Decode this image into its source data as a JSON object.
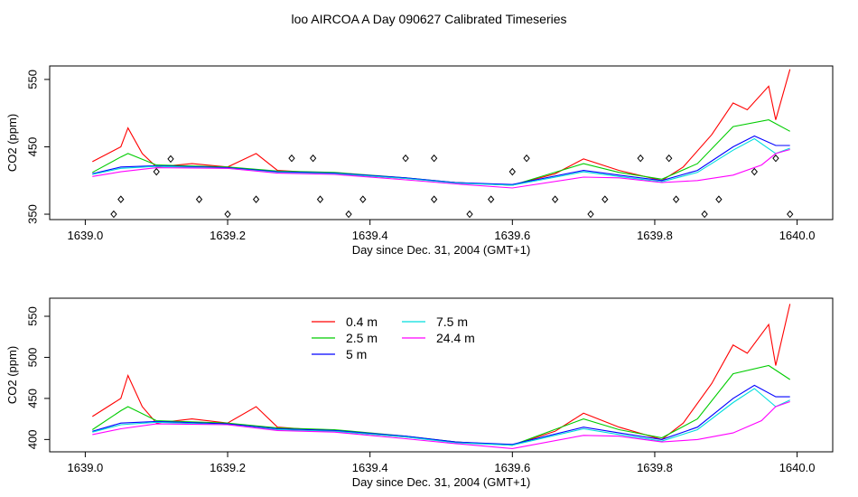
{
  "title": "loo AIRCOA A  Day 090627  Calibrated Timeseries",
  "chart_data": [
    {
      "type": "line",
      "xlabel": "Day since Dec. 31, 2004 (GMT+1)",
      "ylabel": "CO2 (ppm)",
      "xlim": [
        1638.95,
        1640.05
      ],
      "ylim": [
        342,
        570
      ],
      "xticks": [
        "1639.0",
        "1639.2",
        "1639.4",
        "1639.6",
        "1639.8",
        "1640.0"
      ],
      "yticks": [
        "350",
        "450",
        "550"
      ],
      "series": [
        {
          "name": "0.4 m",
          "color": "#ff0000",
          "x": [
            1639.01,
            1639.05,
            1639.06,
            1639.08,
            1639.1,
            1639.15,
            1639.2,
            1639.24,
            1639.27,
            1639.35,
            1639.45,
            1639.52,
            1639.6,
            1639.66,
            1639.7,
            1639.75,
            1639.81,
            1639.84,
            1639.88,
            1639.91,
            1639.93,
            1639.96,
            1639.97,
            1639.99
          ],
          "y": [
            428,
            450,
            478,
            440,
            420,
            425,
            420,
            440,
            415,
            410,
            403,
            397,
            393,
            410,
            432,
            415,
            400,
            420,
            468,
            515,
            505,
            540,
            490,
            565
          ]
        },
        {
          "name": "2.5 m",
          "color": "#00cc00",
          "x": [
            1639.01,
            1639.05,
            1639.06,
            1639.1,
            1639.2,
            1639.27,
            1639.35,
            1639.45,
            1639.52,
            1639.6,
            1639.7,
            1639.75,
            1639.81,
            1639.86,
            1639.91,
            1639.96,
            1639.99
          ],
          "y": [
            412,
            435,
            440,
            423,
            420,
            414,
            412,
            404,
            397,
            393,
            425,
            412,
            402,
            425,
            480,
            490,
            473
          ]
        },
        {
          "name": "5 m",
          "color": "#0000ff",
          "x": [
            1639.01,
            1639.05,
            1639.1,
            1639.2,
            1639.27,
            1639.35,
            1639.45,
            1639.52,
            1639.6,
            1639.7,
            1639.75,
            1639.81,
            1639.86,
            1639.91,
            1639.94,
            1639.97,
            1639.99
          ],
          "y": [
            410,
            420,
            422,
            419,
            413,
            411,
            404,
            397,
            394,
            415,
            408,
            400,
            415,
            450,
            466,
            452,
            452
          ]
        },
        {
          "name": "7.5 m",
          "color": "#00dddd",
          "x": [
            1639.01,
            1639.05,
            1639.1,
            1639.2,
            1639.27,
            1639.35,
            1639.45,
            1639.52,
            1639.6,
            1639.7,
            1639.75,
            1639.81,
            1639.86,
            1639.91,
            1639.94,
            1639.97,
            1639.99
          ],
          "y": [
            409,
            418,
            421,
            418,
            412,
            410,
            403,
            396,
            393,
            413,
            406,
            398,
            412,
            445,
            462,
            440,
            448
          ]
        },
        {
          "name": "24.4 m",
          "color": "#ff00ff",
          "x": [
            1639.01,
            1639.05,
            1639.1,
            1639.2,
            1639.27,
            1639.35,
            1639.45,
            1639.52,
            1639.6,
            1639.7,
            1639.75,
            1639.81,
            1639.86,
            1639.91,
            1639.95,
            1639.97,
            1639.99
          ],
          "y": [
            406,
            413,
            419,
            418,
            411,
            409,
            401,
            395,
            389,
            405,
            404,
            397,
            400,
            408,
            423,
            440,
            446
          ]
        }
      ],
      "markers": {
        "x": [
          1639.04,
          1639.05,
          1639.1,
          1639.12,
          1639.16,
          1639.2,
          1639.24,
          1639.29,
          1639.32,
          1639.33,
          1639.37,
          1639.39,
          1639.45,
          1639.49,
          1639.49,
          1639.54,
          1639.57,
          1639.6,
          1639.62,
          1639.66,
          1639.71,
          1639.73,
          1639.78,
          1639.82,
          1639.83,
          1639.87,
          1639.89,
          1639.94,
          1639.97,
          1639.99
        ],
        "y": [
          350,
          372,
          413,
          432,
          372,
          350,
          372,
          433,
          433,
          372,
          350,
          372,
          433,
          433,
          372,
          350,
          372,
          413,
          433,
          372,
          350,
          372,
          433,
          433,
          372,
          350,
          372,
          413,
          433,
          350
        ]
      }
    },
    {
      "type": "line",
      "xlabel": "Day since Dec. 31, 2004 (GMT+1)",
      "ylabel": "CO2 (ppm)",
      "xlim": [
        1638.95,
        1640.05
      ],
      "ylim": [
        385,
        572
      ],
      "xticks": [
        "1639.0",
        "1639.2",
        "1639.4",
        "1639.6",
        "1639.8",
        "1640.0"
      ],
      "yticks": [
        "400",
        "450",
        "500",
        "550"
      ],
      "legend": "top-left",
      "series": [
        {
          "name": "0.4 m",
          "color": "#ff0000",
          "x": [
            1639.01,
            1639.05,
            1639.06,
            1639.08,
            1639.1,
            1639.15,
            1639.2,
            1639.24,
            1639.27,
            1639.35,
            1639.45,
            1639.52,
            1639.6,
            1639.66,
            1639.7,
            1639.75,
            1639.81,
            1639.84,
            1639.88,
            1639.91,
            1639.93,
            1639.96,
            1639.97,
            1639.99
          ],
          "y": [
            428,
            450,
            478,
            440,
            420,
            425,
            420,
            440,
            415,
            410,
            403,
            397,
            393,
            410,
            432,
            415,
            400,
            420,
            468,
            515,
            505,
            540,
            490,
            565
          ]
        },
        {
          "name": "2.5 m",
          "color": "#00cc00",
          "x": [
            1639.01,
            1639.05,
            1639.06,
            1639.1,
            1639.2,
            1639.27,
            1639.35,
            1639.45,
            1639.52,
            1639.6,
            1639.7,
            1639.75,
            1639.81,
            1639.86,
            1639.91,
            1639.96,
            1639.99
          ],
          "y": [
            412,
            435,
            440,
            423,
            420,
            414,
            412,
            404,
            397,
            393,
            425,
            412,
            402,
            425,
            480,
            490,
            473
          ]
        },
        {
          "name": "5 m",
          "color": "#0000ff",
          "x": [
            1639.01,
            1639.05,
            1639.1,
            1639.2,
            1639.27,
            1639.35,
            1639.45,
            1639.52,
            1639.6,
            1639.7,
            1639.75,
            1639.81,
            1639.86,
            1639.91,
            1639.94,
            1639.97,
            1639.99
          ],
          "y": [
            410,
            420,
            422,
            419,
            413,
            411,
            404,
            397,
            394,
            415,
            408,
            400,
            415,
            450,
            466,
            452,
            452
          ]
        },
        {
          "name": "7.5 m",
          "color": "#00dddd",
          "x": [
            1639.01,
            1639.05,
            1639.1,
            1639.2,
            1639.27,
            1639.35,
            1639.45,
            1639.52,
            1639.6,
            1639.7,
            1639.75,
            1639.81,
            1639.86,
            1639.91,
            1639.94,
            1639.97,
            1639.99
          ],
          "y": [
            409,
            418,
            421,
            418,
            412,
            410,
            403,
            396,
            393,
            413,
            406,
            398,
            412,
            445,
            462,
            440,
            448
          ]
        },
        {
          "name": "24.4 m",
          "color": "#ff00ff",
          "x": [
            1639.01,
            1639.05,
            1639.1,
            1639.2,
            1639.27,
            1639.35,
            1639.45,
            1639.52,
            1639.6,
            1639.7,
            1639.75,
            1639.81,
            1639.86,
            1639.91,
            1639.95,
            1639.97,
            1639.99
          ],
          "y": [
            406,
            413,
            419,
            418,
            411,
            409,
            401,
            395,
            389,
            405,
            404,
            397,
            400,
            408,
            423,
            440,
            446
          ]
        }
      ]
    }
  ]
}
